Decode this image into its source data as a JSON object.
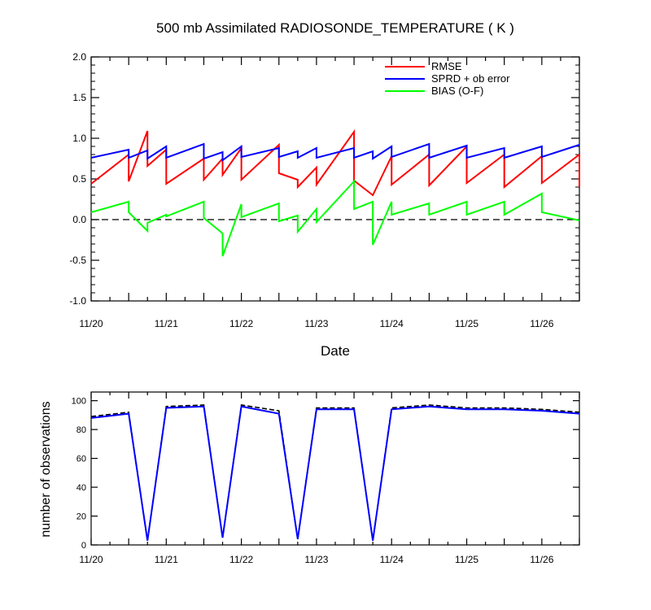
{
  "chart_data": [
    {
      "type": "line",
      "title": "500 mb Assimilated RADIOSONDE_TEMPERATURE ( K )",
      "xlabel": "Date",
      "ylabel": "",
      "x_tick_labels": [
        "11/20",
        "11/21",
        "11/22",
        "11/23",
        "11/24",
        "11/25",
        "11/26"
      ],
      "x_tick_positions_days": [
        0,
        1,
        2,
        3,
        4,
        5,
        6
      ],
      "xlim_days": [
        0,
        6.5
      ],
      "ylim": [
        -1.0,
        2.0
      ],
      "y_tick_labels": [
        "-1.0",
        "-0.5",
        "0.0",
        "0.5",
        "1.0",
        "1.5",
        "2.0"
      ],
      "zero_line": "dashed",
      "legend_position": "top-right",
      "series": [
        {
          "name": "RMSE",
          "color": "#ff0000",
          "points": [
            [
              0.0,
              0.44
            ],
            [
              0.5,
              0.8
            ],
            [
              0.5,
              0.47
            ],
            [
              0.75,
              1.09
            ],
            [
              0.75,
              0.66
            ],
            [
              1.0,
              0.86
            ],
            [
              1.0,
              0.44
            ],
            [
              1.5,
              0.75
            ],
            [
              1.5,
              0.49
            ],
            [
              1.75,
              0.75
            ],
            [
              1.75,
              0.55
            ],
            [
              2.0,
              0.88
            ],
            [
              2.0,
              0.49
            ],
            [
              2.5,
              0.92
            ],
            [
              2.5,
              0.57
            ],
            [
              2.75,
              0.49
            ],
            [
              2.75,
              0.4
            ],
            [
              3.0,
              0.64
            ],
            [
              3.0,
              0.43
            ],
            [
              3.5,
              1.08
            ],
            [
              3.5,
              0.48
            ],
            [
              3.75,
              0.3
            ],
            [
              4.0,
              0.78
            ],
            [
              4.0,
              0.43
            ],
            [
              4.5,
              0.8
            ],
            [
              4.5,
              0.42
            ],
            [
              5.0,
              0.9
            ],
            [
              5.0,
              0.45
            ],
            [
              5.5,
              0.8
            ],
            [
              5.5,
              0.4
            ],
            [
              6.0,
              0.78
            ],
            [
              6.0,
              0.45
            ],
            [
              6.5,
              0.8
            ],
            [
              6.5,
              0.4
            ]
          ]
        },
        {
          "name": "SPRD + ob error",
          "color": "#0000ff",
          "points": [
            [
              0.0,
              0.76
            ],
            [
              0.5,
              0.86
            ],
            [
              0.5,
              0.76
            ],
            [
              0.75,
              0.85
            ],
            [
              0.75,
              0.75
            ],
            [
              1.0,
              0.9
            ],
            [
              1.0,
              0.76
            ],
            [
              1.5,
              0.93
            ],
            [
              1.5,
              0.75
            ],
            [
              1.75,
              0.83
            ],
            [
              1.75,
              0.73
            ],
            [
              2.0,
              0.9
            ],
            [
              2.0,
              0.77
            ],
            [
              2.5,
              0.88
            ],
            [
              2.5,
              0.77
            ],
            [
              2.75,
              0.84
            ],
            [
              2.75,
              0.76
            ],
            [
              3.0,
              0.88
            ],
            [
              3.0,
              0.76
            ],
            [
              3.5,
              0.88
            ],
            [
              3.5,
              0.76
            ],
            [
              3.75,
              0.84
            ],
            [
              3.75,
              0.75
            ],
            [
              4.0,
              0.9
            ],
            [
              4.0,
              0.77
            ],
            [
              4.5,
              0.93
            ],
            [
              4.5,
              0.76
            ],
            [
              5.0,
              0.91
            ],
            [
              5.0,
              0.76
            ],
            [
              5.5,
              0.88
            ],
            [
              5.5,
              0.76
            ],
            [
              6.0,
              0.9
            ],
            [
              6.0,
              0.77
            ],
            [
              6.5,
              0.92
            ]
          ]
        },
        {
          "name": "BIAS (O-F)",
          "color": "#00ff00",
          "points": [
            [
              0.0,
              0.09
            ],
            [
              0.5,
              0.22
            ],
            [
              0.5,
              0.09
            ],
            [
              0.75,
              -0.14
            ],
            [
              0.75,
              -0.04
            ],
            [
              1.0,
              0.06
            ],
            [
              1.0,
              0.04
            ],
            [
              1.5,
              0.22
            ],
            [
              1.5,
              0.02
            ],
            [
              1.75,
              -0.17
            ],
            [
              1.75,
              -0.45
            ],
            [
              2.0,
              0.19
            ],
            [
              2.0,
              0.03
            ],
            [
              2.5,
              0.2
            ],
            [
              2.5,
              -0.02
            ],
            [
              2.75,
              0.05
            ],
            [
              2.75,
              -0.15
            ],
            [
              3.0,
              0.13
            ],
            [
              3.0,
              -0.03
            ],
            [
              3.5,
              0.47
            ],
            [
              3.5,
              0.13
            ],
            [
              3.75,
              0.22
            ],
            [
              3.75,
              -0.31
            ],
            [
              4.0,
              0.22
            ],
            [
              4.0,
              0.06
            ],
            [
              4.5,
              0.2
            ],
            [
              4.5,
              0.06
            ],
            [
              5.0,
              0.22
            ],
            [
              5.0,
              0.06
            ],
            [
              5.5,
              0.22
            ],
            [
              5.5,
              0.06
            ],
            [
              6.0,
              0.32
            ],
            [
              6.0,
              0.09
            ],
            [
              6.5,
              -0.01
            ]
          ]
        }
      ]
    },
    {
      "type": "line",
      "title": "",
      "xlabel": "",
      "ylabel": "number of observations",
      "x_tick_labels": [
        "11/20",
        "11/21",
        "11/22",
        "11/23",
        "11/24",
        "11/25",
        "11/26"
      ],
      "x_tick_positions_days": [
        0,
        1,
        2,
        3,
        4,
        5,
        6
      ],
      "xlim_days": [
        0,
        6.5
      ],
      "ylim": [
        0,
        106
      ],
      "y_tick_labels": [
        "0",
        "20",
        "40",
        "60",
        "80",
        "100"
      ],
      "y_tick_values": [
        0,
        20,
        40,
        60,
        80,
        100
      ],
      "series": [
        {
          "style": "dashed",
          "color": "#000000",
          "points": [
            [
              0.0,
              89
            ],
            [
              0.5,
              92
            ],
            [
              0.75,
              3
            ],
            [
              1.0,
              96
            ],
            [
              1.5,
              97
            ],
            [
              1.75,
              5
            ],
            [
              2.0,
              97
            ],
            [
              2.5,
              93
            ],
            [
              2.75,
              4
            ],
            [
              3.0,
              95
            ],
            [
              3.5,
              95
            ],
            [
              3.75,
              3
            ],
            [
              4.0,
              95
            ],
            [
              4.5,
              97
            ],
            [
              5.0,
              95
            ],
            [
              5.5,
              95
            ],
            [
              6.0,
              94
            ],
            [
              6.5,
              92
            ]
          ]
        },
        {
          "style": "solid",
          "color": "#0000ff",
          "points": [
            [
              0.0,
              88
            ],
            [
              0.5,
              91
            ],
            [
              0.75,
              3
            ],
            [
              1.0,
              95
            ],
            [
              1.5,
              96
            ],
            [
              1.75,
              5
            ],
            [
              2.0,
              96
            ],
            [
              2.5,
              91
            ],
            [
              2.75,
              4
            ],
            [
              3.0,
              94
            ],
            [
              3.5,
              94
            ],
            [
              3.75,
              3
            ],
            [
              4.0,
              94
            ],
            [
              4.5,
              96
            ],
            [
              5.0,
              94
            ],
            [
              5.5,
              94
            ],
            [
              6.0,
              93
            ],
            [
              6.5,
              91
            ]
          ]
        }
      ]
    }
  ]
}
